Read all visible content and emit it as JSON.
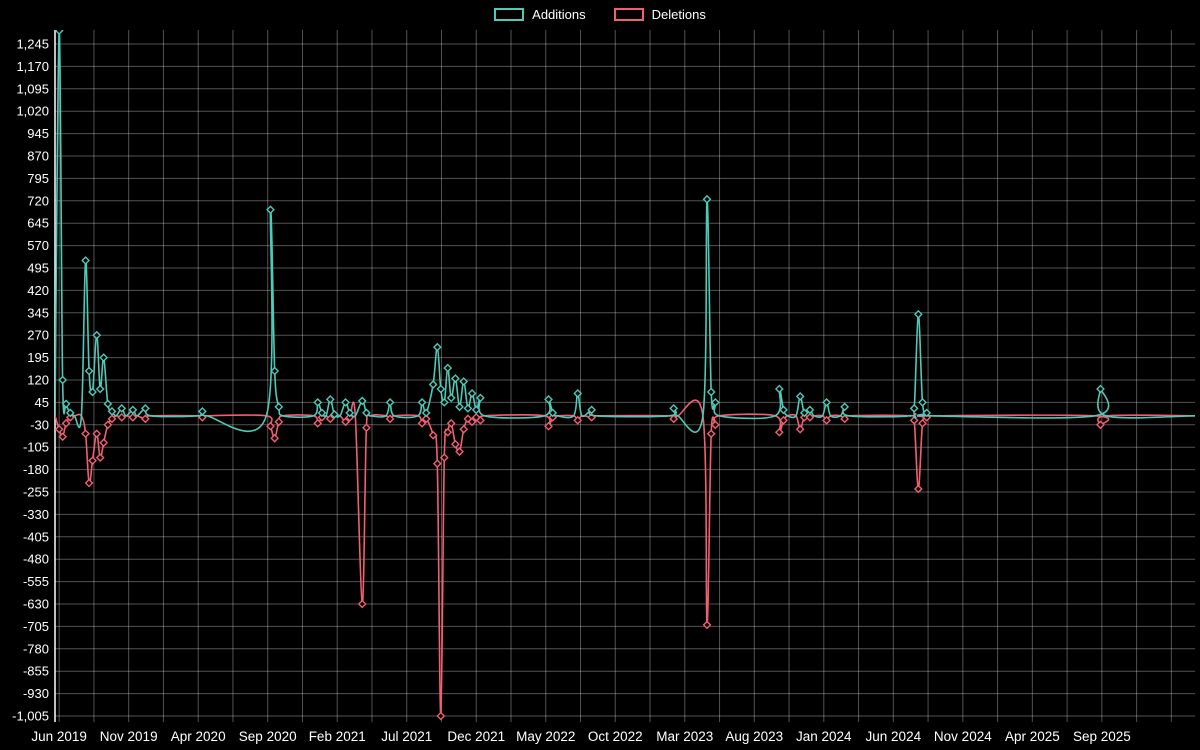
{
  "legend": {
    "additions_label": "Additions",
    "deletions_label": "Deletions"
  },
  "colors": {
    "background": "#000000",
    "grid": "rgba(255,255,255,0.32)",
    "axis": "#ffffff",
    "text": "#ffffff",
    "additions": "#4fc9b8",
    "deletions": "#f25f72"
  },
  "chart_data": {
    "type": "line",
    "title": "",
    "x_axis": {
      "min": -0.3,
      "max": 81.7,
      "tick_step": 5,
      "minor_step": 2.5,
      "tick_labels": [
        "Jun 2019",
        "Nov 2019",
        "Apr 2020",
        "Sep 2020",
        "Feb 2021",
        "Jul 2021",
        "Dec 2021",
        "May 2022",
        "Oct 2022",
        "Mar 2023",
        "Aug 2023",
        "Jan 2024",
        "Jun 2024",
        "Nov 2024",
        "Apr 2025",
        "Sep 2025"
      ]
    },
    "y_axis": {
      "min": -1005,
      "max": 1245,
      "step": 75
    },
    "series": [
      {
        "name": "Additions",
        "color": "#4fc9b8",
        "col": 1
      },
      {
        "name": "Deletions",
        "color": "#f25f72",
        "col": 2
      }
    ],
    "points": [
      [
        -0.3,
        0,
        0
      ],
      [
        0,
        1290,
        -45
      ],
      [
        0.25,
        120,
        -70
      ],
      [
        0.5,
        40,
        -25
      ],
      [
        0.8,
        10,
        -5
      ],
      [
        1.1,
        0,
        0
      ],
      [
        1.6,
        0,
        0
      ],
      [
        1.9,
        520,
        -60
      ],
      [
        2.15,
        150,
        -225
      ],
      [
        2.4,
        80,
        -150
      ],
      [
        2.7,
        270,
        -60
      ],
      [
        2.95,
        90,
        -140
      ],
      [
        3.2,
        195,
        -90
      ],
      [
        3.5,
        40,
        -30
      ],
      [
        3.8,
        15,
        -10
      ],
      [
        4.1,
        0,
        0
      ],
      [
        4.5,
        25,
        -5
      ],
      [
        4.8,
        0,
        0
      ],
      [
        5.3,
        20,
        -5
      ],
      [
        5.6,
        0,
        0
      ],
      [
        6.2,
        25,
        -10
      ],
      [
        6.6,
        0,
        0
      ],
      [
        10,
        0,
        0
      ],
      [
        10.3,
        15,
        -5
      ],
      [
        10.6,
        0,
        0
      ],
      [
        14.9,
        0,
        0
      ],
      [
        15.2,
        690,
        -35
      ],
      [
        15.5,
        150,
        -75
      ],
      [
        15.8,
        30,
        -20
      ],
      [
        16.1,
        0,
        0
      ],
      [
        18.3,
        0,
        0
      ],
      [
        18.6,
        45,
        -25
      ],
      [
        18.9,
        10,
        -5
      ],
      [
        19.2,
        0,
        0
      ],
      [
        19.5,
        55,
        -10
      ],
      [
        19.8,
        5,
        0
      ],
      [
        20.2,
        0,
        0
      ],
      [
        20.6,
        45,
        -20
      ],
      [
        20.9,
        10,
        -5
      ],
      [
        21.3,
        0,
        0
      ],
      [
        21.8,
        50,
        -630
      ],
      [
        22.1,
        10,
        -40
      ],
      [
        22.4,
        0,
        0
      ],
      [
        23.5,
        0,
        0
      ],
      [
        23.8,
        45,
        -10
      ],
      [
        24.1,
        0,
        0
      ],
      [
        25.8,
        0,
        0
      ],
      [
        26.1,
        45,
        -25
      ],
      [
        26.4,
        10,
        -10
      ],
      [
        26.9,
        105,
        -65
      ],
      [
        27.2,
        230,
        -160
      ],
      [
        27.45,
        90,
        -1005
      ],
      [
        27.7,
        45,
        -140
      ],
      [
        27.95,
        160,
        -55
      ],
      [
        28.2,
        60,
        -25
      ],
      [
        28.5,
        125,
        -95
      ],
      [
        28.8,
        30,
        -120
      ],
      [
        29.1,
        115,
        -45
      ],
      [
        29.4,
        25,
        -10
      ],
      [
        29.7,
        75,
        -20
      ],
      [
        30,
        20,
        -5
      ],
      [
        30.3,
        60,
        -15
      ],
      [
        30.6,
        0,
        0
      ],
      [
        34.9,
        0,
        0
      ],
      [
        35.2,
        55,
        -35
      ],
      [
        35.5,
        10,
        -5
      ],
      [
        35.8,
        0,
        0
      ],
      [
        37,
        0,
        0
      ],
      [
        37.3,
        75,
        -15
      ],
      [
        37.6,
        0,
        0
      ],
      [
        38.3,
        20,
        -5
      ],
      [
        38.6,
        0,
        0
      ],
      [
        43.9,
        0,
        0
      ],
      [
        44.2,
        25,
        -10
      ],
      [
        44.5,
        0,
        0
      ],
      [
        46.3,
        0,
        0
      ],
      [
        46.6,
        725,
        -700
      ],
      [
        46.9,
        80,
        -60
      ],
      [
        47.2,
        45,
        -30
      ],
      [
        47.5,
        0,
        0
      ],
      [
        51.5,
        0,
        0
      ],
      [
        51.8,
        90,
        -55
      ],
      [
        52.1,
        20,
        -15
      ],
      [
        52.4,
        0,
        0
      ],
      [
        53,
        0,
        0
      ],
      [
        53.3,
        65,
        -45
      ],
      [
        53.6,
        10,
        -5
      ],
      [
        54,
        20,
        -5
      ],
      [
        54.3,
        0,
        0
      ],
      [
        54.9,
        0,
        0
      ],
      [
        55.2,
        45,
        -15
      ],
      [
        55.5,
        0,
        0
      ],
      [
        56.2,
        0,
        0
      ],
      [
        56.5,
        30,
        -10
      ],
      [
        56.8,
        0,
        0
      ],
      [
        61.2,
        0,
        0
      ],
      [
        61.5,
        25,
        -15
      ],
      [
        61.8,
        340,
        -245
      ],
      [
        62.1,
        45,
        -25
      ],
      [
        62.4,
        10,
        -5
      ],
      [
        62.7,
        0,
        0
      ],
      [
        74.5,
        0,
        0
      ],
      [
        74.9,
        90,
        -30
      ],
      [
        75.3,
        0,
        0
      ],
      [
        81.7,
        0,
        0
      ]
    ]
  }
}
